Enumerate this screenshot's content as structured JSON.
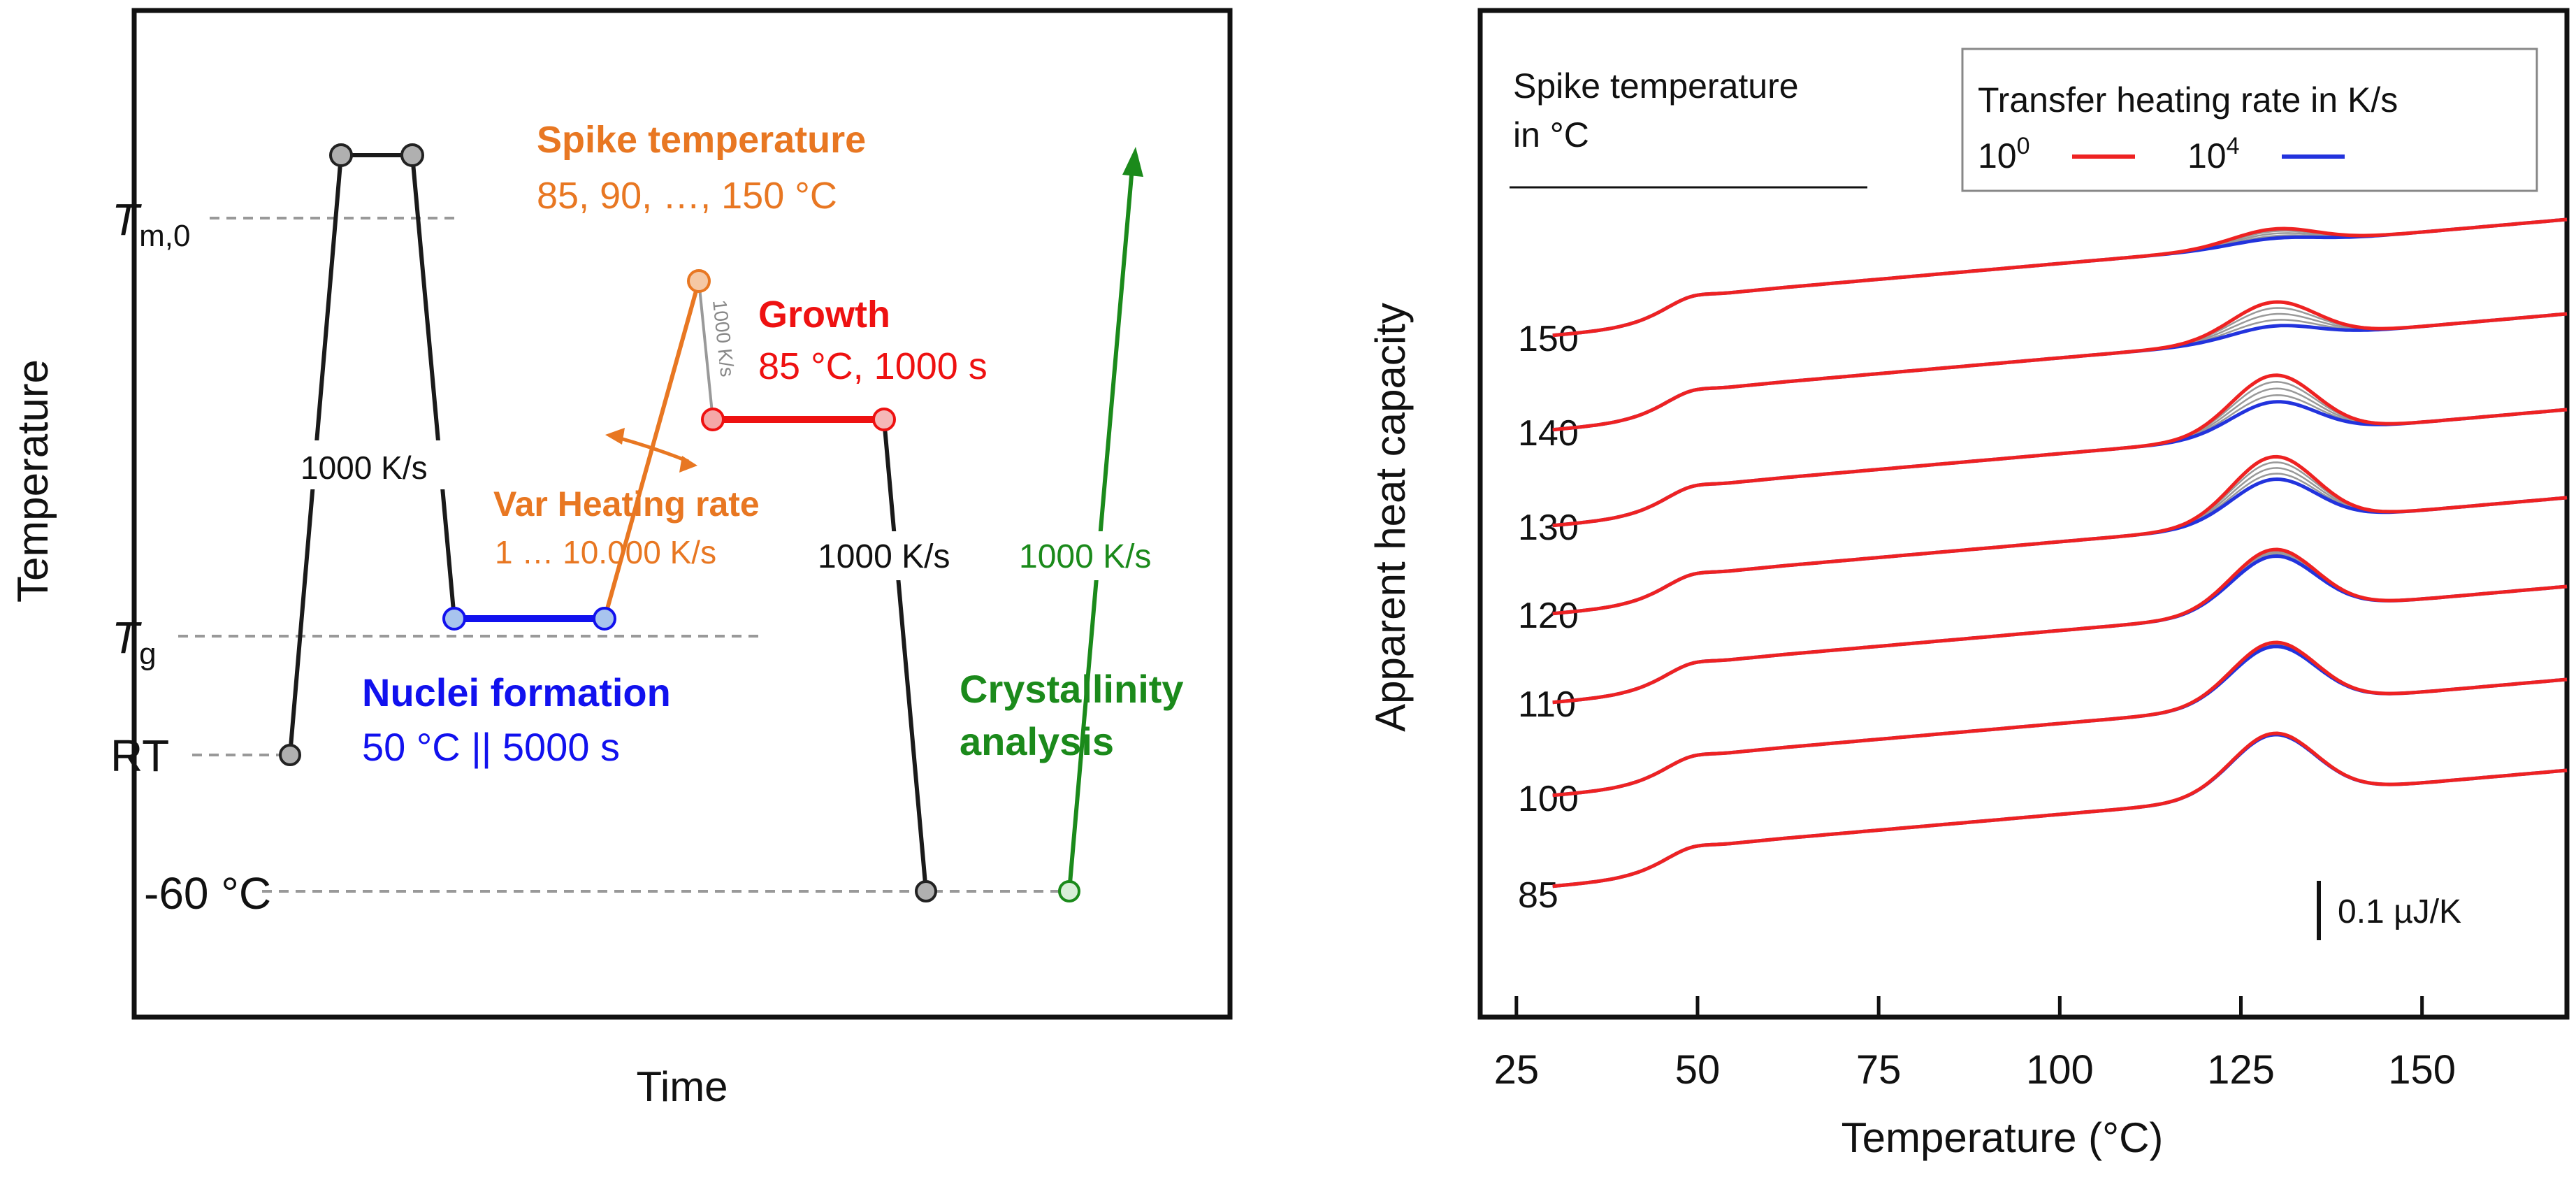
{
  "chart_data": [
    {
      "type": "diagram",
      "title": "",
      "xlabel": "Time",
      "ylabel": "Temperature",
      "y_ticks": [
        {
          "main": "T",
          "sub": "m,0"
        },
        {
          "main": "T",
          "sub": "g"
        },
        {
          "main": "RT",
          "sub": ""
        },
        {
          "main": "-60 °C",
          "sub": ""
        }
      ],
      "segment_labels": {
        "quench": "1000 K/s",
        "spike_title": "Spike temperature",
        "spike_values": "85, 90, …, 150 °C",
        "spike_rate": "1000 K/s",
        "growth_title": "Growth",
        "growth_values": "85 °C, 1000 s",
        "var_title": "Var Heating rate",
        "var_values": "1 … 10.000 K/s",
        "cool_rate": "1000 K/s",
        "heat_rate": "1000 K/s",
        "nuclei_title": "Nuclei formation",
        "nuclei_values": "50 °C || 5000 s",
        "crystallinity_title_1": "Crystallinity",
        "crystallinity_title_2": "analysis"
      },
      "colors": {
        "black_path": "#1a1a1a",
        "nuclei": "#1111ee",
        "spike": "#e87722",
        "growth": "#ee1111",
        "analysis": "#1b8a1b",
        "dashed": "#999999"
      }
    },
    {
      "type": "line",
      "xlabel": "Temperature (°C)",
      "ylabel": "Apparent heat capacity",
      "xlim": [
        20,
        170
      ],
      "x_ticks": [
        25,
        50,
        75,
        100,
        125,
        150
      ],
      "offset_label_title_1": "Spike temperature",
      "offset_label_title_2": "in °C",
      "curve_labels": [
        "150",
        "140",
        "130",
        "120",
        "110",
        "100",
        "85"
      ],
      "legend": {
        "title": "Transfer heating rate in K/s",
        "entries": [
          {
            "base": "10",
            "exp": "0",
            "color": "#ee2222"
          },
          {
            "base": "10",
            "exp": "4",
            "color": "#2233dd"
          }
        ]
      },
      "scale_bar_label": "0.1 µJ/K",
      "curves": [
        {
          "label": "150",
          "peak_red": 0.12,
          "peak_blue": 0.05
        },
        {
          "label": "140",
          "peak_red": 0.28,
          "peak_blue": 0.1
        },
        {
          "label": "130",
          "peak_red": 0.45,
          "peak_blue": 0.25
        },
        {
          "label": "120",
          "peak_red": 0.5,
          "peak_blue": 0.33
        },
        {
          "label": "110",
          "peak_red": 0.47,
          "peak_blue": 0.42
        },
        {
          "label": "100",
          "peak_red": 0.47,
          "peak_blue": 0.44
        },
        {
          "label": "85",
          "peak_red": 0.47,
          "peak_blue": 0.46
        }
      ],
      "colors": {
        "red": "#ee2222",
        "blue": "#2233dd",
        "gray": "#999999"
      }
    }
  ]
}
